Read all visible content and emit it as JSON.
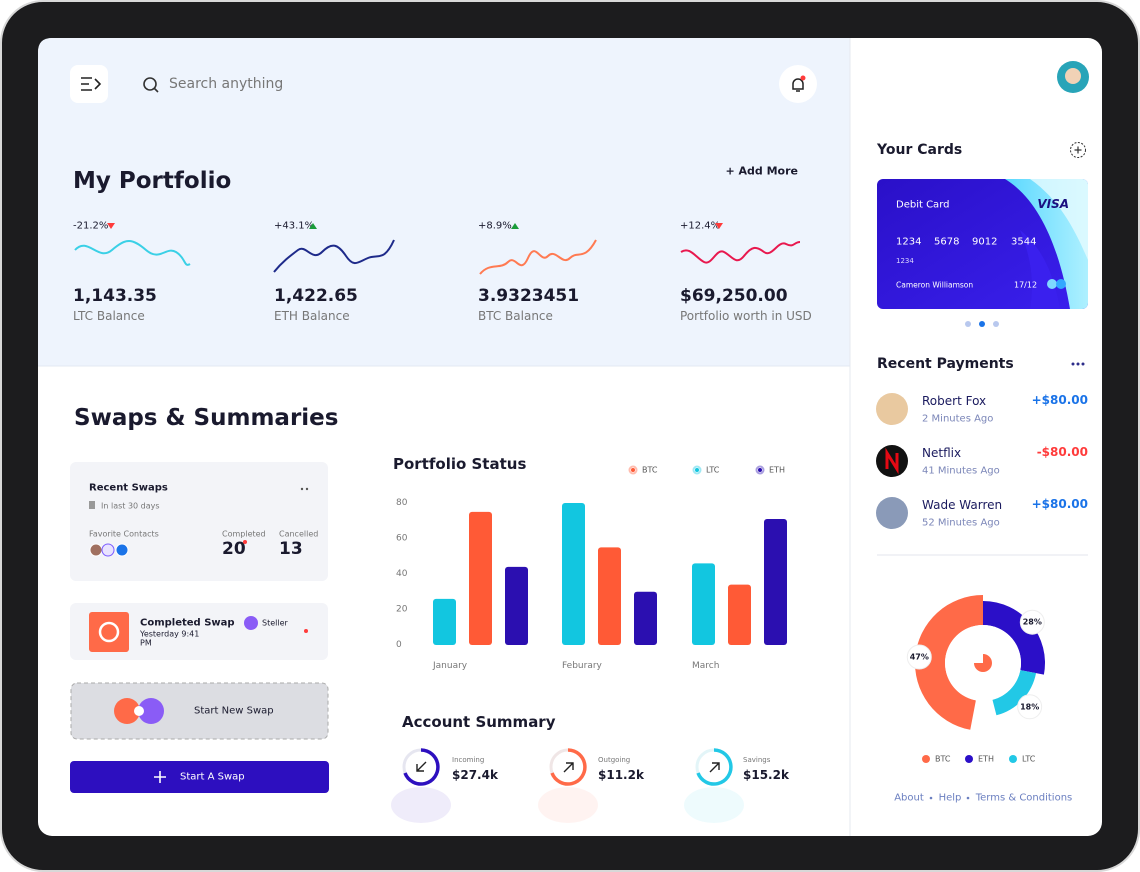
{
  "header": {
    "search_placeholder": "Search anything"
  },
  "portfolio": {
    "title": "My Portfolio",
    "add_more": "+ Add More",
    "balances": [
      {
        "change": "-21.2%",
        "value": "1,143.35",
        "label": "LTC Balance"
      },
      {
        "change": "+43.1%",
        "value": "1,422.65",
        "label": "ETH Balance"
      },
      {
        "change": "+8.9%",
        "value": "3.9323451",
        "label": "BTC Balance"
      },
      {
        "change": "+12.4%",
        "value": "$69,250.00",
        "label": "Portfolio worth in USD"
      }
    ]
  },
  "swaps": {
    "title": "Swaps & Summaries",
    "recent_swaps": {
      "title": "Recent Swaps",
      "period": "In last 30 days",
      "favorite_contacts": "Favorite Contacts",
      "completed_label": "Completed",
      "completed_value": "20",
      "cancelled_label": "Cancelled",
      "cancelled_value": "13"
    },
    "completed_swap": {
      "title": "Completed Swap",
      "time": "Yesterday 9:41",
      "time_suffix": "PM",
      "coin": "Steller"
    },
    "start_new_swap": "Start New Swap",
    "start_button": "Start A Swap"
  },
  "portfolio_status": {
    "type": "bar",
    "title": "Portfolio Status",
    "categories": [
      "January",
      "Feburary",
      "March"
    ],
    "series": [
      {
        "name": "BTC",
        "color": "#ff5a36",
        "values": [
          75,
          55,
          34
        ]
      },
      {
        "name": "LTC",
        "color": "#12c6e0",
        "values": [
          26,
          80,
          46
        ]
      },
      {
        "name": "ETH",
        "color": "#2b0fb0",
        "values": [
          44,
          30,
          71
        ]
      }
    ],
    "ylim": [
      0,
      80
    ],
    "yticks": [
      0,
      20,
      40,
      60,
      80
    ]
  },
  "account_summary": {
    "title": "Account Summary",
    "items": [
      {
        "label": "Incoming",
        "value": "$27.4k"
      },
      {
        "label": "Outgoing",
        "value": "$11.2k"
      },
      {
        "label": "Savings",
        "value": "$15.2k"
      }
    ]
  },
  "cards": {
    "title": "Your Cards",
    "card": {
      "type": "Debit Card",
      "brand": "VISA",
      "number": [
        "1234",
        "5678",
        "9012",
        "3544"
      ],
      "number_small": "1234",
      "holder": "Cameron Williamson",
      "expiry": "17/12"
    }
  },
  "recent_payments": {
    "title": "Recent Payments",
    "items": [
      {
        "name": "Robert Fox",
        "time": "2 Minutes Ago",
        "amount": "+$80.00"
      },
      {
        "name": "Netflix",
        "time": "41 Minutes Ago",
        "amount": "-$80.00"
      },
      {
        "name": "Wade Warren",
        "time": "52 Minutes Ago",
        "amount": "+$80.00"
      }
    ]
  },
  "allocation": {
    "type": "pie",
    "categories": [
      "BTC",
      "ETH",
      "LTC"
    ],
    "values": [
      47,
      28,
      18
    ],
    "value_labels": [
      "47%",
      "28%",
      "18%"
    ],
    "colors": [
      "#ff6a48",
      "#2b0fc8",
      "#22c8e6"
    ]
  },
  "footer": {
    "links": [
      "About",
      "Help",
      "Terms & Conditions"
    ]
  }
}
